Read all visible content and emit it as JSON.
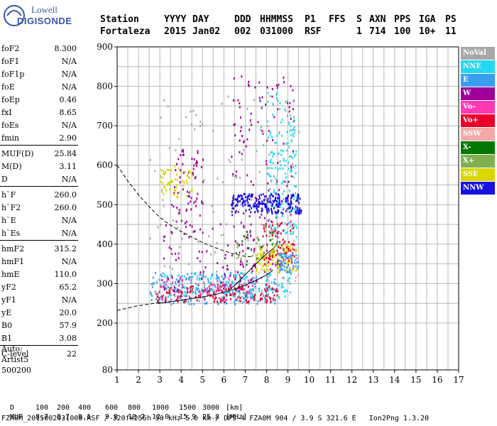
{
  "logo": {
    "line1": "Lowell",
    "line2": "DIGISONDE"
  },
  "header": {
    "row1": [
      "Station",
      "YYYY",
      "DAY",
      "DDD",
      "HHMMSS",
      "P1",
      "FFS",
      "S",
      "AXN",
      "PPS",
      "IGA",
      "PS"
    ],
    "row2": [
      "Fortaleza",
      "2015",
      "Jan02",
      "002",
      "031000",
      "RSF",
      "",
      "1",
      "714",
      "100",
      "10+",
      "11"
    ]
  },
  "params": [
    {
      "name": "foF2",
      "value": "8.300"
    },
    {
      "name": "foF1",
      "value": "N/A"
    },
    {
      "name": "foF1p",
      "value": "N/A"
    },
    {
      "name": "foE",
      "value": "N/A"
    },
    {
      "name": "foEp",
      "value": "0.46"
    },
    {
      "name": "fxI",
      "value": "8.65"
    },
    {
      "name": "foEs",
      "value": "N/A"
    },
    {
      "name": "fmin",
      "value": "2.90"
    },
    {
      "name": "MUF(D)",
      "value": "25.84"
    },
    {
      "name": "M(D)",
      "value": "3.11"
    },
    {
      "name": "D",
      "value": "N/A"
    },
    {
      "name": "h`F",
      "value": "260.0"
    },
    {
      "name": "h`F2",
      "value": "260.0"
    },
    {
      "name": "h`E",
      "value": "N/A"
    },
    {
      "name": "h`Es",
      "value": "N/A"
    },
    {
      "name": "hmF2",
      "value": "315.2"
    },
    {
      "name": "hmF1",
      "value": "N/A"
    },
    {
      "name": "hmE",
      "value": "110.0"
    },
    {
      "name": "yF2",
      "value": "65.2"
    },
    {
      "name": "yF1",
      "value": "N/A"
    },
    {
      "name": "yE",
      "value": "20.0"
    },
    {
      "name": "B0",
      "value": "57.9"
    },
    {
      "name": "B1",
      "value": "3.08"
    },
    {
      "name": "C-level",
      "value": "22"
    }
  ],
  "auto": [
    "Auto:",
    "Artist5",
    "500200"
  ],
  "bottom": {
    "d_label": "D",
    "d_values": [
      "100",
      "200",
      "400",
      "600",
      "800",
      "1000",
      "1500",
      "3000",
      "[km]"
    ],
    "muf_label": "MUF",
    "muf_values": [
      "8.7",
      "8.7",
      "9.1",
      "9.8",
      "10.7",
      "12.0",
      "15.9",
      "25.8",
      "[MHz]"
    ],
    "footer": "FZA0M_2015002031000.RSF / 320fx256h 50 kHz 5.0 km / DPS-4 FZA0M 904 / 3.9 S 321.6 E   Ion2Png 1.3.20"
  },
  "chart_data": {
    "type": "scatter",
    "title": "",
    "xlabel": "",
    "ylabel": "",
    "xlim": [
      1,
      17
    ],
    "ylim": [
      80,
      900
    ],
    "xticks": [
      1,
      2,
      3,
      4,
      5,
      6,
      7,
      8,
      9,
      10,
      11,
      12,
      13,
      14,
      15,
      16,
      17
    ],
    "yticks": [
      80,
      200,
      300,
      400,
      500,
      600,
      700,
      800,
      900
    ],
    "grid": true,
    "legend_placement": "right",
    "legend": [
      {
        "name": "NoVal",
        "color": "#a8a8a8"
      },
      {
        "name": "NNE",
        "color": "#22d8f0"
      },
      {
        "name": "E",
        "color": "#3a9ef0"
      },
      {
        "name": "W",
        "color": "#a0009a"
      },
      {
        "name": "Vo-",
        "color": "#ff3ab4"
      },
      {
        "name": "Vo+",
        "color": "#e8002a"
      },
      {
        "name": "SSW",
        "color": "#f4a8a8"
      },
      {
        "name": "X-",
        "color": "#007800"
      },
      {
        "name": "X+",
        "color": "#80b050"
      },
      {
        "name": "SSE",
        "color": "#d8d800"
      },
      {
        "name": "NNW",
        "color": "#1a10e0"
      }
    ],
    "trace_dashed": {
      "x": [
        1,
        1.5,
        2,
        2.5,
        3,
        3.5,
        4,
        4.5,
        5,
        5.5,
        6,
        6.5,
        7,
        7.3
      ],
      "y": [
        600,
        560,
        525,
        495,
        468,
        448,
        432,
        418,
        404,
        393,
        383,
        375,
        369,
        368
      ]
    },
    "trace_dashed_lower": {
      "x": [
        1,
        1.5,
        2,
        2.5,
        3
      ],
      "y": [
        232,
        238,
        244,
        248,
        252
      ]
    },
    "profile_solid": {
      "x": [
        2.9,
        3.5,
        4,
        4.5,
        5,
        5.5,
        6,
        6.5,
        7,
        7.5,
        8,
        8.3
      ],
      "y": [
        250,
        254,
        258,
        262,
        266,
        271,
        278,
        286,
        296,
        308,
        322,
        334
      ]
    },
    "profile_steep": {
      "x": [
        6.2,
        6.6,
        7.0,
        7.4,
        7.8,
        8.1,
        8.3
      ],
      "y": [
        282,
        300,
        322,
        345,
        365,
        380,
        388
      ]
    },
    "clusters": [
      {
        "series": "E",
        "x": [
          2.5,
          8.5
        ],
        "y": [
          250,
          330
        ],
        "density": 260
      },
      {
        "series": "Vo+",
        "x": [
          2.8,
          8.6
        ],
        "y": [
          255,
          300
        ],
        "density": 160
      },
      {
        "series": "Vo-",
        "x": [
          3,
          7.5
        ],
        "y": [
          260,
          320
        ],
        "density": 80
      },
      {
        "series": "NNE",
        "x": [
          3,
          9.3
        ],
        "y": [
          265,
          330
        ],
        "density": 110
      },
      {
        "series": "W",
        "x": [
          3,
          7.5
        ],
        "y": [
          280,
          460
        ],
        "density": 80
      },
      {
        "series": "W",
        "x": [
          3.5,
          5
        ],
        "y": [
          430,
          660
        ],
        "density": 70
      },
      {
        "series": "W",
        "x": [
          6.3,
          9.3
        ],
        "y": [
          330,
          830
        ],
        "density": 150
      },
      {
        "series": "SSE",
        "x": [
          3,
          4.5
        ],
        "y": [
          520,
          600
        ],
        "density": 60
      },
      {
        "series": "SSE",
        "x": [
          7.5,
          9.4
        ],
        "y": [
          330,
          400
        ],
        "density": 110
      },
      {
        "series": "NNE",
        "x": [
          8,
          9.4
        ],
        "y": [
          420,
          640
        ],
        "density": 120
      },
      {
        "series": "NNE",
        "x": [
          7.6,
          9.3
        ],
        "y": [
          640,
          790
        ],
        "density": 50
      },
      {
        "series": "NNW",
        "x": [
          6.3,
          9.6
        ],
        "y": [
          480,
          530
        ],
        "density": 220
      },
      {
        "series": "Vo+",
        "x": [
          7.8,
          9.3
        ],
        "y": [
          350,
          460
        ],
        "density": 80
      },
      {
        "series": "E",
        "x": [
          8.5,
          9.5
        ],
        "y": [
          330,
          380
        ],
        "density": 60
      },
      {
        "series": "NoVal",
        "x": [
          2.5,
          9.5
        ],
        "y": [
          280,
          780
        ],
        "density": 110
      },
      {
        "series": "X-",
        "x": [
          6.5,
          8.5
        ],
        "y": [
          350,
          450
        ],
        "density": 20
      },
      {
        "series": "X+",
        "x": [
          6.5,
          8.5
        ],
        "y": [
          360,
          420
        ],
        "density": 20
      },
      {
        "series": "SSW",
        "x": [
          8,
          9.5
        ],
        "y": [
          300,
          450
        ],
        "density": 20
      }
    ]
  }
}
